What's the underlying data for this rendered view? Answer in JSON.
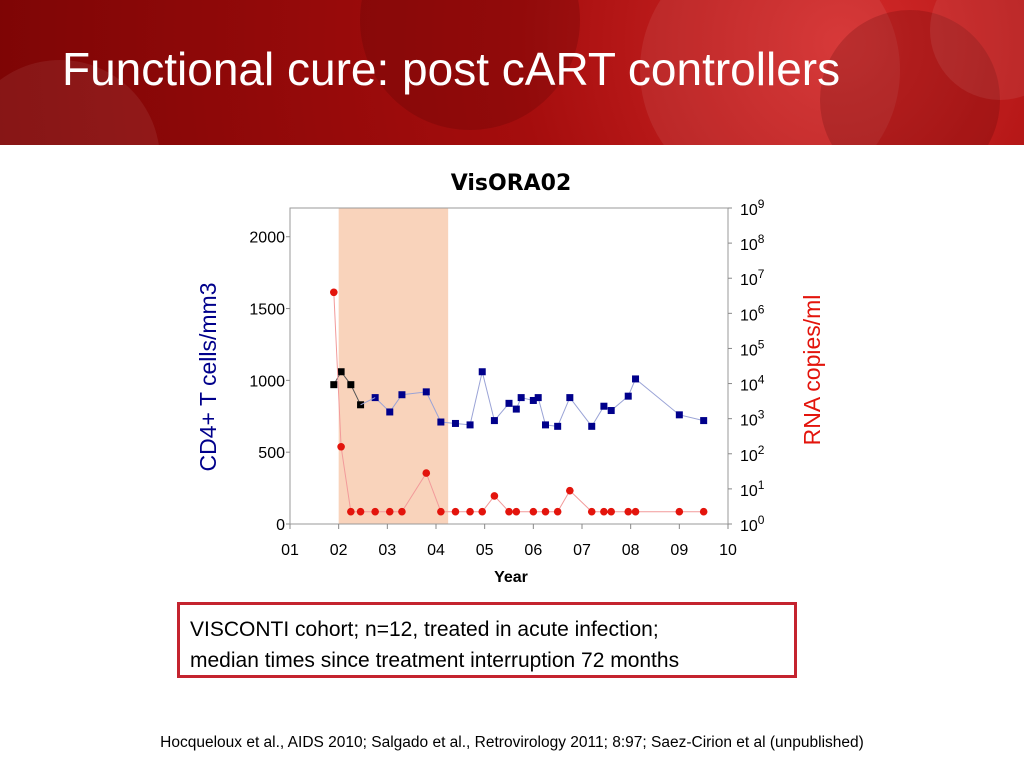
{
  "slide": {
    "title": "Functional cure: post cART controllers"
  },
  "note": {
    "line1": "VISCONTI cohort; n=12, treated in acute infection;",
    "line2": "median times since treatment interruption 72 months"
  },
  "citation": "Hocqueloux et al., AIDS 2010; Salgado et al., Retrovirology 2011; 8:97; Saez-Cirion et al (unpublished)",
  "colors": {
    "banner": "#a50d0d",
    "title_text": "#ffffff",
    "cd4_series": "#00008b",
    "rna_series": "#e3140c",
    "shaded_period": "#f9d3bb",
    "note_border": "#c4232f"
  },
  "chart_data": {
    "type": "scatter",
    "title": "VisORA02",
    "xlabel": "Year",
    "ylabel_left": "CD4+ T cells/mm3",
    "ylabel_right": "RNA copies/ml",
    "xlim": [
      2001,
      2010
    ],
    "x_ticks": [
      "01",
      "02",
      "03",
      "04",
      "05",
      "06",
      "07",
      "08",
      "09",
      "10"
    ],
    "ylim_left": [
      0,
      2200
    ],
    "y_ticks_left": [
      "0",
      "500",
      "1000",
      "1500",
      "2000"
    ],
    "y_ticks_right_exponents": [
      "0",
      "1",
      "2",
      "3",
      "4",
      "5",
      "6",
      "7",
      "8",
      "9"
    ],
    "ylim_right_log10": [
      0,
      9
    ],
    "right_tick_base": "10",
    "shaded_period": [
      2002.0,
      2004.25
    ],
    "grid": false,
    "series": [
      {
        "key": "cd4_treated",
        "axis": "left",
        "color": "#000000",
        "marker": "square",
        "connected": true,
        "points": [
          [
            2001.9,
            970
          ],
          [
            2002.05,
            1060
          ],
          [
            2002.25,
            970
          ],
          [
            2002.45,
            830
          ]
        ]
      },
      {
        "key": "cd4_post",
        "axis": "left",
        "color": "#00008b",
        "marker": "square",
        "connected": true,
        "points": [
          [
            2002.75,
            880
          ],
          [
            2003.05,
            780
          ],
          [
            2003.3,
            900
          ],
          [
            2003.8,
            920
          ],
          [
            2004.1,
            710
          ],
          [
            2004.4,
            700
          ],
          [
            2004.7,
            690
          ],
          [
            2004.95,
            1060
          ],
          [
            2005.2,
            720
          ],
          [
            2005.5,
            840
          ],
          [
            2005.65,
            800
          ],
          [
            2005.75,
            880
          ],
          [
            2006.0,
            860
          ],
          [
            2006.1,
            880
          ],
          [
            2006.25,
            690
          ],
          [
            2006.5,
            680
          ],
          [
            2006.75,
            880
          ],
          [
            2007.2,
            680
          ],
          [
            2007.45,
            820
          ],
          [
            2007.6,
            790
          ],
          [
            2007.95,
            890
          ],
          [
            2008.1,
            1010
          ],
          [
            2009.0,
            760
          ],
          [
            2009.5,
            720
          ]
        ]
      },
      {
        "key": "rna",
        "axis": "right",
        "color": "#e3140c",
        "marker": "circle",
        "connected": true,
        "points": [
          [
            2001.9,
            6.6
          ],
          [
            2002.05,
            2.2
          ],
          [
            2002.25,
            0.35
          ],
          [
            2002.45,
            0.35
          ],
          [
            2002.75,
            0.35
          ],
          [
            2003.05,
            0.35
          ],
          [
            2003.3,
            0.35
          ],
          [
            2003.8,
            1.45
          ],
          [
            2004.1,
            0.35
          ],
          [
            2004.4,
            0.35
          ],
          [
            2004.7,
            0.35
          ],
          [
            2004.95,
            0.35
          ],
          [
            2005.2,
            0.8
          ],
          [
            2005.5,
            0.35
          ],
          [
            2005.65,
            0.35
          ],
          [
            2006.0,
            0.35
          ],
          [
            2006.25,
            0.35
          ],
          [
            2006.5,
            0.35
          ],
          [
            2006.75,
            0.95
          ],
          [
            2007.2,
            0.35
          ],
          [
            2007.45,
            0.35
          ],
          [
            2007.6,
            0.35
          ],
          [
            2007.95,
            0.35
          ],
          [
            2008.1,
            0.35
          ],
          [
            2009.0,
            0.35
          ],
          [
            2009.5,
            0.35
          ]
        ]
      }
    ]
  }
}
